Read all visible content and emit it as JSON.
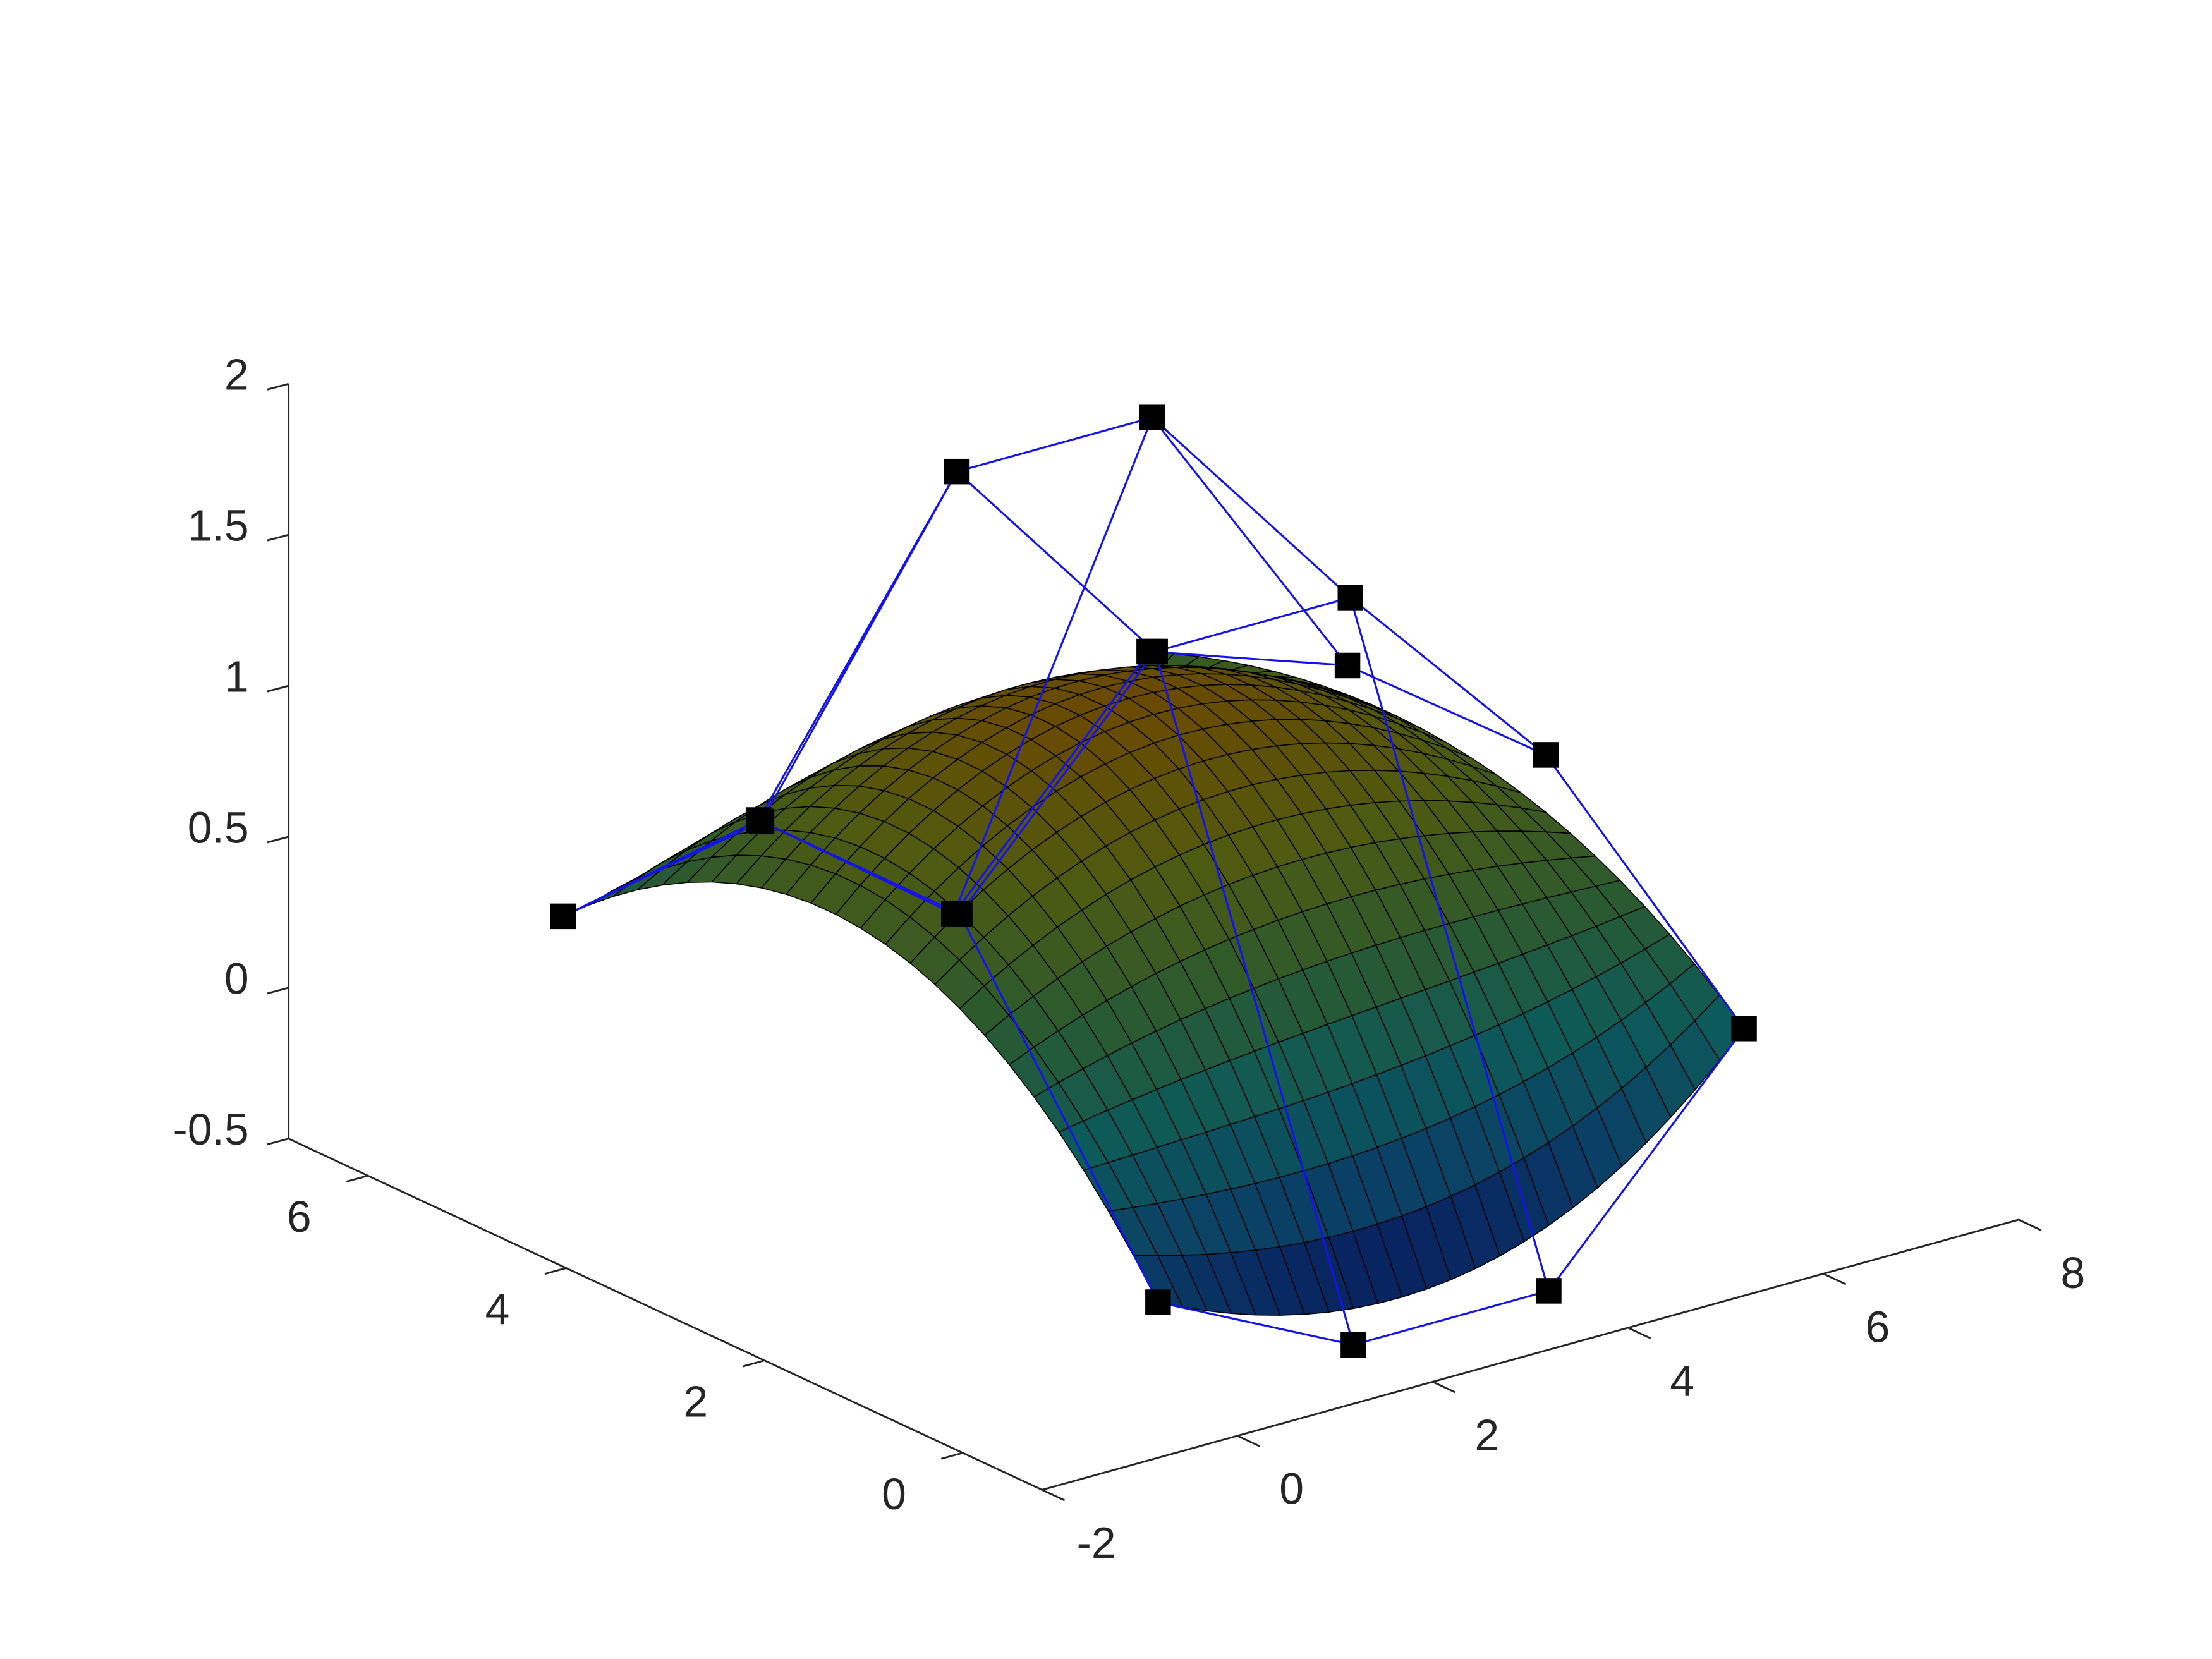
{
  "chart_data": {
    "type": "surface3d",
    "x": [
      0,
      2,
      4,
      6
    ],
    "y": [
      0,
      2,
      4,
      6
    ],
    "z": [
      [
        -0.18,
        0.8,
        0.8,
        0.18
      ],
      [
        -0.5,
        1.49,
        1.78,
        0.32
      ],
      [
        -0.5,
        1.49,
        1.78,
        -0.17
      ],
      [
        0.19,
        0.79,
        0.78,
        0.52
      ]
    ],
    "xlim": [
      -2,
      8
    ],
    "xticks": [
      -2,
      0,
      2,
      4,
      6,
      8
    ],
    "ylim": [
      -0.8,
      6.8
    ],
    "yticks": [
      0,
      2,
      4,
      6
    ],
    "zlim": [
      -0.5,
      2
    ],
    "zticks": [
      -0.5,
      0,
      0.5,
      1,
      1.5,
      2
    ],
    "colormap": [
      "#08175e",
      "#0a3f66",
      "#0d5a5a",
      "#2c5a2e",
      "#4f5a10",
      "#6a4a02"
    ],
    "edge_color": "#000000",
    "net_color": "#1414e6",
    "marker_color": "#000000"
  }
}
